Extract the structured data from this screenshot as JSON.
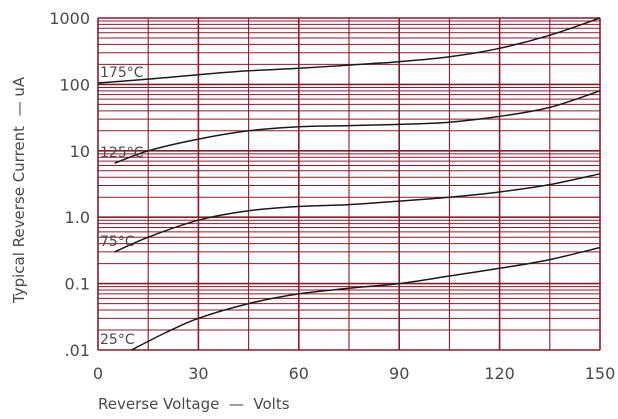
{
  "chart_data": {
    "type": "line",
    "title": "",
    "xlabel": "Reverse Voltage  —  Volts",
    "ylabel": "Typical Reverse Current  — uA",
    "x_scale": "linear",
    "y_scale": "log",
    "xlim": [
      0,
      150
    ],
    "ylim": [
      0.01,
      1000
    ],
    "x_ticks": [
      0,
      30,
      60,
      90,
      120,
      150
    ],
    "x_tick_labels": [
      "0",
      "30",
      "60",
      "90",
      "120",
      "150"
    ],
    "y_ticks": [
      0.01,
      0.1,
      1,
      10,
      100,
      1000
    ],
    "y_tick_labels": [
      ".01",
      "0.1",
      "1.0",
      "10",
      "100",
      "1000"
    ],
    "x_grid_step": 15,
    "grid": true,
    "legend": "none",
    "colors": {
      "grid": "#8b1a2b",
      "curve": "#1a1a1a",
      "text": "#4a4a4a"
    },
    "series": [
      {
        "name": "25°C",
        "x": [
          10,
          20,
          30,
          45,
          60,
          75,
          90,
          105,
          120,
          135,
          150
        ],
        "y": [
          0.01,
          0.018,
          0.03,
          0.05,
          0.07,
          0.085,
          0.1,
          0.13,
          0.17,
          0.23,
          0.35
        ]
      },
      {
        "name": "75°C",
        "x": [
          5,
          15,
          30,
          45,
          60,
          75,
          90,
          105,
          120,
          135,
          150
        ],
        "y": [
          0.3,
          0.5,
          0.9,
          1.25,
          1.45,
          1.55,
          1.75,
          2.0,
          2.4,
          3.1,
          4.5
        ]
      },
      {
        "name": "125°C",
        "x": [
          5,
          15,
          30,
          45,
          60,
          75,
          90,
          105,
          120,
          135,
          150
        ],
        "y": [
          6.5,
          10,
          15,
          20,
          23,
          24,
          25,
          27,
          33,
          45,
          80
        ]
      },
      {
        "name": "175°C",
        "x": [
          0,
          15,
          30,
          45,
          60,
          75,
          90,
          105,
          120,
          135,
          150
        ],
        "y": [
          105,
          120,
          140,
          160,
          175,
          195,
          220,
          260,
          350,
          550,
          1000
        ]
      }
    ]
  }
}
